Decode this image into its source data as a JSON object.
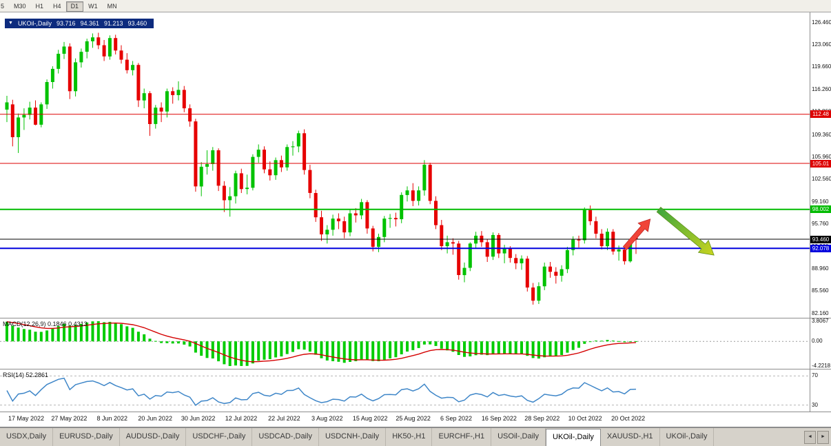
{
  "toolbar": {
    "buttons": [
      {
        "label": "5",
        "active": false
      },
      {
        "label": "M30",
        "active": false
      },
      {
        "label": "H1",
        "active": false
      },
      {
        "label": "H4",
        "active": false
      },
      {
        "label": "D1",
        "active": true
      },
      {
        "label": "W1",
        "active": false
      },
      {
        "label": "MN",
        "active": false
      }
    ]
  },
  "chart_header": {
    "collapse_icon": "▼",
    "symbol": "UKOil-,Daily",
    "open": "93.716",
    "high": "94.361",
    "low": "91.213",
    "close": "93.460"
  },
  "price_axis": {
    "ticks": [
      126.46,
      123.06,
      119.66,
      116.26,
      112.86,
      109.36,
      105.96,
      102.56,
      99.16,
      95.76,
      92.36,
      88.96,
      85.56,
      82.16
    ]
  },
  "hlines": [
    {
      "price": 112.48,
      "label": "112.48",
      "color": "#dd0000",
      "stroke": 1
    },
    {
      "price": 105.01,
      "label": "105.01",
      "color": "#dd0000",
      "stroke": 1
    },
    {
      "price": 98.002,
      "label": "98.002",
      "color": "#00bb00",
      "stroke": 2
    },
    {
      "price": 93.46,
      "label": "93.460",
      "color": "#000000",
      "stroke": 1
    },
    {
      "price": 92.078,
      "label": "92.078",
      "color": "#0000dd",
      "stroke": 2
    }
  ],
  "chart_data": {
    "type": "candlestick",
    "title": "UKOil-,Daily",
    "symbol": "UKOil-",
    "timeframe": "Daily",
    "y_range": [
      82.16,
      126.46
    ],
    "up_color": "#00c200",
    "down_color": "#e60000",
    "x_labels": [
      "17 May 2022",
      "27 May 2022",
      "8 Jun 2022",
      "20 Jun 2022",
      "30 Jun 2022",
      "12 Jul 2022",
      "22 Jul 2022",
      "3 Aug 2022",
      "15 Aug 2022",
      "25 Aug 2022",
      "6 Sep 2022",
      "16 Sep 2022",
      "28 Sep 2022",
      "10 Oct 2022",
      "20 Oct 2022"
    ],
    "ohlc": [
      [
        113.2,
        115.3,
        111.3,
        114.3
      ],
      [
        114.0,
        114.7,
        107.6,
        109.0
      ],
      [
        109.0,
        112.6,
        106.6,
        112.0
      ],
      [
        112.0,
        113.4,
        110.1,
        112.4
      ],
      [
        112.4,
        114.4,
        111.7,
        113.5
      ],
      [
        113.5,
        114.6,
        110.8,
        110.9
      ],
      [
        110.9,
        114.3,
        110.5,
        114.0
      ],
      [
        114.0,
        117.8,
        113.3,
        117.4
      ],
      [
        117.4,
        119.8,
        116.4,
        119.4
      ],
      [
        119.4,
        122.3,
        118.7,
        121.7
      ],
      [
        121.7,
        123.5,
        120.9,
        122.8
      ],
      [
        122.8,
        123.3,
        114.8,
        116.0
      ],
      [
        116.0,
        121.0,
        115.2,
        120.4
      ],
      [
        120.4,
        122.5,
        119.6,
        122.0
      ],
      [
        122.0,
        124.0,
        121.0,
        123.6
      ],
      [
        123.6,
        124.8,
        122.6,
        124.2
      ],
      [
        124.2,
        124.9,
        122.4,
        123.0
      ],
      [
        123.0,
        123.8,
        120.6,
        121.3
      ],
      [
        121.3,
        124.5,
        120.8,
        124.1
      ],
      [
        124.1,
        124.6,
        121.6,
        122.2
      ],
      [
        122.2,
        123.0,
        120.2,
        120.8
      ],
      [
        120.8,
        121.8,
        118.7,
        119.2
      ],
      [
        119.2,
        120.6,
        118.4,
        120.0
      ],
      [
        120.0,
        120.3,
        113.6,
        114.6
      ],
      [
        114.6,
        116.4,
        113.4,
        115.7
      ],
      [
        115.7,
        116.0,
        109.2,
        111.0
      ],
      [
        111.0,
        113.9,
        110.3,
        113.5
      ],
      [
        113.5,
        114.3,
        111.3,
        112.9
      ],
      [
        112.9,
        116.4,
        112.0,
        116.0
      ],
      [
        116.0,
        116.6,
        114.1,
        115.4
      ],
      [
        115.4,
        117.5,
        114.6,
        116.2
      ],
      [
        116.2,
        116.8,
        112.8,
        113.4
      ],
      [
        113.4,
        114.0,
        110.6,
        111.4
      ],
      [
        111.4,
        111.8,
        100.7,
        101.5
      ],
      [
        101.5,
        105.2,
        100.0,
        104.5
      ],
      [
        104.5,
        107.0,
        103.3,
        104.9
      ],
      [
        104.9,
        107.5,
        103.9,
        107.0
      ],
      [
        107.0,
        107.3,
        100.8,
        101.6
      ],
      [
        101.6,
        102.3,
        97.6,
        99.4
      ],
      [
        99.4,
        101.4,
        96.9,
        100.0
      ],
      [
        100.0,
        103.9,
        98.9,
        103.5
      ],
      [
        103.5,
        104.2,
        100.5,
        101.1
      ],
      [
        101.1,
        103.3,
        100.3,
        101.3
      ],
      [
        101.3,
        106.4,
        100.9,
        106.0
      ],
      [
        106.0,
        107.9,
        105.1,
        107.1
      ],
      [
        107.1,
        107.6,
        103.5,
        104.1
      ],
      [
        104.1,
        105.3,
        102.4,
        103.2
      ],
      [
        103.2,
        105.9,
        102.5,
        105.5
      ],
      [
        105.5,
        106.2,
        103.7,
        104.4
      ],
      [
        104.4,
        107.9,
        103.9,
        107.5
      ],
      [
        107.5,
        108.4,
        106.2,
        107.6
      ],
      [
        107.6,
        110.0,
        106.7,
        109.6
      ],
      [
        109.6,
        110.2,
        103.3,
        104.0
      ],
      [
        104.0,
        104.8,
        99.7,
        100.5
      ],
      [
        100.5,
        101.0,
        96.1,
        96.8
      ],
      [
        96.8,
        97.8,
        93.2,
        94.2
      ],
      [
        94.2,
        95.6,
        92.8,
        94.9
      ],
      [
        94.9,
        97.2,
        94.0,
        96.6
      ],
      [
        96.6,
        97.4,
        95.0,
        96.2
      ],
      [
        96.2,
        96.9,
        93.6,
        94.5
      ],
      [
        94.5,
        98.0,
        93.9,
        97.4
      ],
      [
        97.4,
        98.2,
        96.0,
        97.1
      ],
      [
        97.1,
        99.6,
        96.5,
        99.1
      ],
      [
        99.1,
        99.4,
        94.3,
        95.1
      ],
      [
        95.1,
        95.5,
        91.6,
        92.3
      ],
      [
        92.3,
        94.3,
        91.5,
        93.8
      ],
      [
        93.8,
        97.0,
        93.0,
        96.6
      ],
      [
        96.6,
        97.3,
        95.2,
        96.7
      ],
      [
        96.7,
        97.5,
        95.4,
        96.5
      ],
      [
        96.5,
        100.6,
        95.9,
        100.2
      ],
      [
        100.2,
        101.5,
        99.2,
        100.9
      ],
      [
        100.9,
        102.0,
        98.5,
        99.3
      ],
      [
        99.3,
        101.5,
        98.6,
        100.9
      ],
      [
        100.9,
        105.5,
        100.1,
        104.8
      ],
      [
        104.8,
        105.1,
        98.8,
        99.3
      ],
      [
        99.3,
        100.0,
        95.0,
        95.6
      ],
      [
        95.6,
        96.4,
        91.8,
        92.4
      ],
      [
        92.4,
        94.0,
        91.3,
        93.0
      ],
      [
        93.0,
        93.6,
        91.1,
        92.8
      ],
      [
        92.8,
        93.2,
        87.3,
        88.0
      ],
      [
        88.0,
        89.9,
        86.9,
        89.1
      ],
      [
        89.1,
        93.0,
        88.6,
        92.8
      ],
      [
        92.8,
        94.6,
        92.0,
        94.0
      ],
      [
        94.0,
        94.7,
        92.3,
        93.0
      ],
      [
        93.0,
        93.5,
        90.0,
        90.8
      ],
      [
        90.8,
        94.5,
        90.3,
        94.1
      ],
      [
        94.1,
        94.4,
        90.6,
        91.3
      ],
      [
        91.3,
        92.6,
        89.8,
        92.0
      ],
      [
        92.0,
        92.4,
        89.9,
        90.6
      ],
      [
        90.6,
        91.2,
        88.9,
        89.8
      ],
      [
        89.8,
        91.0,
        88.8,
        90.5
      ],
      [
        90.5,
        90.9,
        85.5,
        86.1
      ],
      [
        86.1,
        86.8,
        83.5,
        84.1
      ],
      [
        84.1,
        86.9,
        83.6,
        86.3
      ],
      [
        86.3,
        89.9,
        85.7,
        89.3
      ],
      [
        89.3,
        90.0,
        87.6,
        88.5
      ],
      [
        88.5,
        89.2,
        86.7,
        87.9
      ],
      [
        87.9,
        89.5,
        87.0,
        88.9
      ],
      [
        88.9,
        92.3,
        88.3,
        91.8
      ],
      [
        91.8,
        93.9,
        91.0,
        93.4
      ],
      [
        93.4,
        94.0,
        92.2,
        93.3
      ],
      [
        93.3,
        98.3,
        92.8,
        97.9
      ],
      [
        97.9,
        98.6,
        95.6,
        96.2
      ],
      [
        96.2,
        96.9,
        93.6,
        94.3
      ],
      [
        94.3,
        95.0,
        91.9,
        92.4
      ],
      [
        92.4,
        95.1,
        91.8,
        94.6
      ],
      [
        94.6,
        95.0,
        91.1,
        91.6
      ],
      [
        91.6,
        92.5,
        90.2,
        91.9
      ],
      [
        91.9,
        92.3,
        89.6,
        90.1
      ],
      [
        90.1,
        93.6,
        89.9,
        93.3
      ],
      [
        93.716,
        94.361,
        91.213,
        93.46
      ]
    ]
  },
  "indicators": {
    "macd": {
      "label": "MACD(12,26,9)",
      "value_main": "0.1846",
      "value_signal": "0.4313",
      "axis_max": "3.8067",
      "axis_zero": "0.00",
      "axis_min": "-4.2218",
      "histogram_color": "#00cc00",
      "signal_color": "#d40000",
      "seed": 3.3
    },
    "rsi": {
      "label": "RSI(14)",
      "value": "52.2861",
      "levels": [
        "70",
        "30"
      ],
      "line_color": "#3e86c8"
    }
  },
  "annotations": {
    "up_arrow": {
      "color": "#f04438"
    },
    "down_arrow": {
      "color_tail": "#3fa63c",
      "color_head": "#c9d41f"
    }
  },
  "tabs": {
    "items": [
      "USDX,Daily",
      "EURUSD-,Daily",
      "AUDUSD-,Daily",
      "USDCHF-,Daily",
      "USDCAD-,Daily",
      "USDCNH-,Daily",
      "HK50-,H1",
      "EURCHF-,H1",
      "USOil-,Daily",
      "UKOil-,Daily",
      "XAUUSD-,H1",
      "UKOil-,Daily"
    ],
    "active_index": 9,
    "scroll_left": "◄",
    "scroll_right": "►"
  }
}
